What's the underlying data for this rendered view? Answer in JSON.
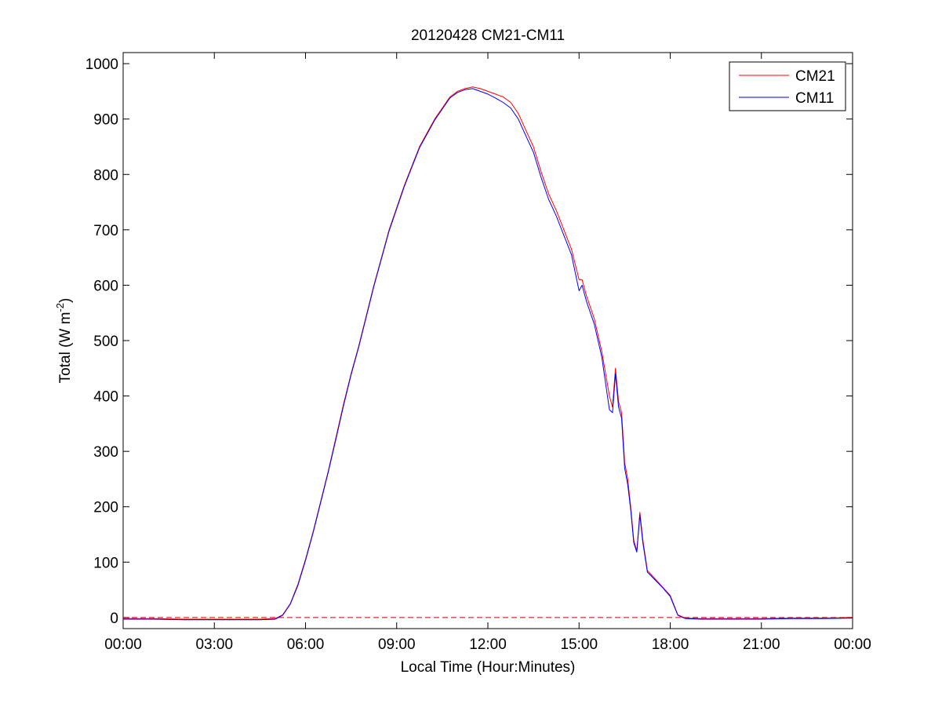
{
  "chart_data": {
    "type": "line",
    "title": "20120428 CM21-CM11",
    "xlabel": "Local Time (Hour:Minutes)",
    "ylabel_base": "Total (W m",
    "ylabel_sup": "-2",
    "ylabel_tail": ")",
    "xlim": [
      0,
      24
    ],
    "ylim": [
      -20,
      1020
    ],
    "x_ticks": [
      {
        "value": 0,
        "label": "00:00"
      },
      {
        "value": 3,
        "label": "03:00"
      },
      {
        "value": 6,
        "label": "06:00"
      },
      {
        "value": 9,
        "label": "09:00"
      },
      {
        "value": 12,
        "label": "12:00"
      },
      {
        "value": 15,
        "label": "15:00"
      },
      {
        "value": 18,
        "label": "18:00"
      },
      {
        "value": 21,
        "label": "21:00"
      },
      {
        "value": 24,
        "label": "00:00"
      }
    ],
    "y_ticks": [
      {
        "value": 0,
        "label": "0"
      },
      {
        "value": 100,
        "label": "100"
      },
      {
        "value": 200,
        "label": "200"
      },
      {
        "value": 300,
        "label": "300"
      },
      {
        "value": 400,
        "label": "400"
      },
      {
        "value": 500,
        "label": "500"
      },
      {
        "value": 600,
        "label": "600"
      },
      {
        "value": 700,
        "label": "700"
      },
      {
        "value": 800,
        "label": "800"
      },
      {
        "value": 900,
        "label": "900"
      },
      {
        "value": 1000,
        "label": "1000"
      }
    ],
    "grid": false,
    "legend_position": "top-right",
    "reference_line": {
      "y": 0,
      "style": "dashed",
      "color": "#cc0000"
    },
    "series": [
      {
        "name": "CM21",
        "color": "#ff0000",
        "x": [
          0,
          1,
          2,
          3,
          4,
          4.5,
          5,
          5.25,
          5.5,
          5.75,
          6,
          6.25,
          6.5,
          6.75,
          7,
          7.25,
          7.5,
          7.75,
          8,
          8.25,
          8.5,
          8.75,
          9,
          9.25,
          9.5,
          9.75,
          10,
          10.25,
          10.5,
          10.75,
          11,
          11.25,
          11.5,
          11.75,
          12,
          12.25,
          12.5,
          12.75,
          13,
          13.25,
          13.5,
          13.75,
          14,
          14.25,
          14.5,
          14.75,
          15,
          15.1,
          15.25,
          15.5,
          15.75,
          16,
          16.1,
          16.2,
          16.3,
          16.4,
          16.5,
          16.6,
          16.7,
          16.8,
          16.9,
          17,
          17.1,
          17.25,
          17.5,
          17.75,
          18,
          18.25,
          18.5,
          19,
          20,
          21,
          22,
          23,
          24
        ],
        "y": [
          -2,
          -2,
          -3,
          -3,
          -3,
          -3,
          -2,
          5,
          25,
          60,
          105,
          155,
          210,
          265,
          325,
          385,
          440,
          490,
          545,
          600,
          650,
          700,
          740,
          780,
          815,
          850,
          875,
          900,
          920,
          940,
          950,
          955,
          958,
          955,
          950,
          945,
          940,
          930,
          910,
          880,
          850,
          805,
          765,
          735,
          700,
          665,
          610,
          610,
          580,
          540,
          480,
          400,
          380,
          450,
          390,
          370,
          280,
          250,
          200,
          140,
          120,
          190,
          140,
          85,
          70,
          55,
          40,
          5,
          -1,
          -2,
          -2,
          -2,
          -1,
          -1,
          0
        ]
      },
      {
        "name": "CM11",
        "color": "#0000ff",
        "x": [
          0,
          1,
          2,
          3,
          4,
          4.5,
          5,
          5.25,
          5.5,
          5.75,
          6,
          6.25,
          6.5,
          6.75,
          7,
          7.25,
          7.5,
          7.75,
          8,
          8.25,
          8.5,
          8.75,
          9,
          9.25,
          9.5,
          9.75,
          10,
          10.25,
          10.5,
          10.75,
          11,
          11.25,
          11.5,
          11.75,
          12,
          12.25,
          12.5,
          12.75,
          13,
          13.25,
          13.5,
          13.75,
          14,
          14.25,
          14.5,
          14.75,
          15,
          15.1,
          15.25,
          15.5,
          15.75,
          16,
          16.1,
          16.2,
          16.3,
          16.4,
          16.5,
          16.6,
          16.7,
          16.8,
          16.9,
          17,
          17.1,
          17.25,
          17.5,
          17.75,
          18,
          18.25,
          18.5,
          19,
          20,
          21,
          22,
          23,
          24
        ],
        "y": [
          -3,
          -3,
          -4,
          -4,
          -4,
          -4,
          -3,
          4,
          24,
          58,
          103,
          153,
          208,
          263,
          322,
          382,
          438,
          488,
          543,
          598,
          648,
          698,
          738,
          778,
          813,
          848,
          873,
          898,
          918,
          938,
          948,
          953,
          955,
          950,
          945,
          938,
          930,
          920,
          900,
          870,
          840,
          795,
          755,
          725,
          690,
          655,
          590,
          600,
          570,
          530,
          470,
          375,
          370,
          440,
          380,
          360,
          270,
          240,
          195,
          135,
          118,
          185,
          135,
          82,
          68,
          54,
          38,
          4,
          -2,
          -3,
          -3,
          -3,
          -2,
          -2,
          -1
        ]
      }
    ]
  }
}
